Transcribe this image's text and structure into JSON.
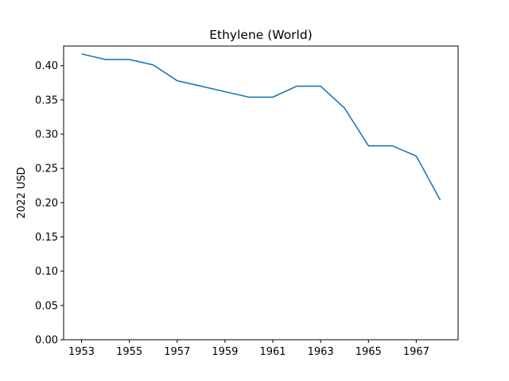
{
  "chart_data": {
    "type": "line",
    "title": "Ethylene (World)",
    "xlabel": "",
    "ylabel": "2022 USD",
    "x": [
      1953,
      1954,
      1955,
      1956,
      1957,
      1958,
      1959,
      1960,
      1961,
      1962,
      1963,
      1964,
      1965,
      1966,
      1967,
      1968
    ],
    "series": [
      {
        "values": [
          0.417,
          0.409,
          0.409,
          0.401,
          0.378,
          0.37,
          0.362,
          0.354,
          0.354,
          0.37,
          0.37,
          0.338,
          0.283,
          0.283,
          0.268,
          0.204
        ],
        "color": "#1f77b4"
      }
    ],
    "xlim": [
      1952.25,
      1968.75
    ],
    "ylim": [
      0,
      0.4286
    ],
    "x_ticks": [
      1953,
      1955,
      1957,
      1959,
      1961,
      1963,
      1965,
      1967
    ],
    "x_tick_labels": [
      "1953",
      "1955",
      "1957",
      "1959",
      "1961",
      "1963",
      "1965",
      "1967"
    ],
    "y_ticks": [
      0,
      0.05,
      0.1,
      0.15,
      0.2,
      0.25,
      0.3,
      0.35,
      0.4
    ],
    "y_tick_labels": [
      "0.00",
      "0.05",
      "0.10",
      "0.15",
      "0.20",
      "0.25",
      "0.30",
      "0.35",
      "0.40"
    ],
    "grid": false,
    "legend": "none"
  }
}
